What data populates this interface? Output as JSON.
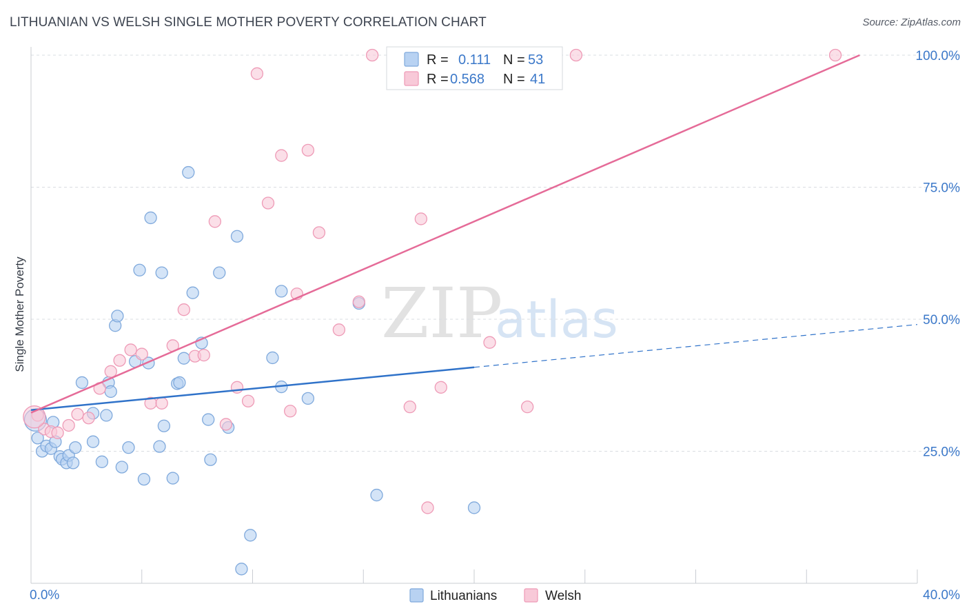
{
  "title": "LITHUANIAN VS WELSH SINGLE MOTHER POVERTY CORRELATION CHART",
  "source": "Source: ZipAtlas.com",
  "watermark": {
    "part1": "ZIP",
    "part2": "atlas"
  },
  "colors": {
    "lithuanians_fill": "#b8d2f2",
    "lithuanians_stroke": "#7fa9dc",
    "lithuanians_line": "#2f72c9",
    "welsh_fill": "#f8c9d8",
    "welsh_stroke": "#ee9ab6",
    "welsh_line": "#e56b98",
    "tick_text": "#3b78c9",
    "grid": "#d9dce1"
  },
  "legend": {
    "rows": [
      {
        "r_label": "R =",
        "r_value": "0.111",
        "n_label": "N =",
        "n_value": "53"
      },
      {
        "r_label": "R =",
        "r_value": "0.568",
        "n_label": "N =",
        "n_value": "41"
      }
    ]
  },
  "bottom_legend": [
    "Lithuanians",
    "Welsh"
  ],
  "chart_data": {
    "type": "scatter",
    "title": "LITHUANIAN VS WELSH SINGLE MOTHER POVERTY CORRELATION CHART",
    "xlabel": "",
    "ylabel": "Single Mother Poverty",
    "xlim": [
      0,
      40
    ],
    "ylim": [
      0,
      102
    ],
    "x_tick_labels": [
      "0.0%",
      "40.0%"
    ],
    "y_ticks": [
      25,
      50,
      75,
      100
    ],
    "y_tick_labels": [
      "25.0%",
      "50.0%",
      "75.0%",
      "100.0%"
    ],
    "grid": true,
    "series": [
      {
        "name": "Lithuanians",
        "R": 0.111,
        "N": 53,
        "trend": {
          "x0": 0,
          "y0": 32.8,
          "x1": 20,
          "y1": 40.9,
          "dashed_to_x": 40,
          "dashed_to_y": 49.0
        },
        "points": [
          [
            0.3,
            27.5
          ],
          [
            0.5,
            25.0
          ],
          [
            0.7,
            26.0
          ],
          [
            0.9,
            25.5
          ],
          [
            1.0,
            30.5
          ],
          [
            1.1,
            26.8
          ],
          [
            1.3,
            24.0
          ],
          [
            1.4,
            23.5
          ],
          [
            1.6,
            22.8
          ],
          [
            1.7,
            24.2
          ],
          [
            1.9,
            22.8
          ],
          [
            2.0,
            25.7
          ],
          [
            2.3,
            38.0
          ],
          [
            2.8,
            32.2
          ],
          [
            2.8,
            26.8
          ],
          [
            3.2,
            23.0
          ],
          [
            3.4,
            31.8
          ],
          [
            3.5,
            38.0
          ],
          [
            3.6,
            36.3
          ],
          [
            3.8,
            48.8
          ],
          [
            3.9,
            50.6
          ],
          [
            4.1,
            22.0
          ],
          [
            4.4,
            25.7
          ],
          [
            4.7,
            42.0
          ],
          [
            4.9,
            59.3
          ],
          [
            5.1,
            19.7
          ],
          [
            5.3,
            41.7
          ],
          [
            5.4,
            69.2
          ],
          [
            5.8,
            25.9
          ],
          [
            5.9,
            58.8
          ],
          [
            6.0,
            29.8
          ],
          [
            6.4,
            19.9
          ],
          [
            6.6,
            37.8
          ],
          [
            6.7,
            38.0
          ],
          [
            6.9,
            42.6
          ],
          [
            7.1,
            77.8
          ],
          [
            7.3,
            55.0
          ],
          [
            7.7,
            45.5
          ],
          [
            8.0,
            31.0
          ],
          [
            8.1,
            23.4
          ],
          [
            8.5,
            58.8
          ],
          [
            8.9,
            29.5
          ],
          [
            9.3,
            65.7
          ],
          [
            9.5,
            2.7
          ],
          [
            9.9,
            9.1
          ],
          [
            10.9,
            42.7
          ],
          [
            11.3,
            55.3
          ],
          [
            11.3,
            37.2
          ],
          [
            12.5,
            35.0
          ],
          [
            14.8,
            53.0
          ],
          [
            15.6,
            16.7
          ],
          [
            20.0,
            14.3
          ],
          [
            0.2,
            30.9
          ]
        ]
      },
      {
        "name": "Welsh",
        "R": 0.568,
        "N": 41,
        "trend": {
          "x0": 0,
          "y0": 32.3,
          "x1": 37.4,
          "y1": 100.0
        },
        "points": [
          [
            0.3,
            31.8
          ],
          [
            0.6,
            29.2
          ],
          [
            0.9,
            28.7
          ],
          [
            1.2,
            28.5
          ],
          [
            1.7,
            29.9
          ],
          [
            2.1,
            32.0
          ],
          [
            2.6,
            31.3
          ],
          [
            3.1,
            36.9
          ],
          [
            3.6,
            40.1
          ],
          [
            4.0,
            42.2
          ],
          [
            4.5,
            44.2
          ],
          [
            5.0,
            43.4
          ],
          [
            5.4,
            34.1
          ],
          [
            5.9,
            34.1
          ],
          [
            6.4,
            45.0
          ],
          [
            6.9,
            51.8
          ],
          [
            7.4,
            43.0
          ],
          [
            7.8,
            43.2
          ],
          [
            8.3,
            68.5
          ],
          [
            8.8,
            30.1
          ],
          [
            9.3,
            37.1
          ],
          [
            9.8,
            34.5
          ],
          [
            10.2,
            96.5
          ],
          [
            10.7,
            72.0
          ],
          [
            11.3,
            81.0
          ],
          [
            11.7,
            32.6
          ],
          [
            12.0,
            54.8
          ],
          [
            12.5,
            82.0
          ],
          [
            13.0,
            66.4
          ],
          [
            13.9,
            48.0
          ],
          [
            14.8,
            53.3
          ],
          [
            15.4,
            100.0
          ],
          [
            17.1,
            33.4
          ],
          [
            17.6,
            69.0
          ],
          [
            17.9,
            14.3
          ],
          [
            18.5,
            37.1
          ],
          [
            20.7,
            45.6
          ],
          [
            22.4,
            33.4
          ],
          [
            24.6,
            100.0
          ],
          [
            36.3,
            100.0
          ],
          [
            0.15,
            31.5
          ]
        ]
      }
    ]
  }
}
